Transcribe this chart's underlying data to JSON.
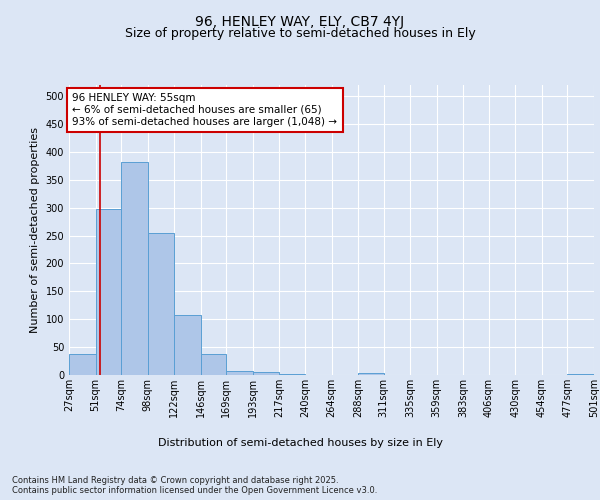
{
  "title": "96, HENLEY WAY, ELY, CB7 4YJ",
  "subtitle": "Size of property relative to semi-detached houses in Ely",
  "xlabel": "Distribution of semi-detached houses by size in Ely",
  "ylabel": "Number of semi-detached properties",
  "bins": [
    27,
    51,
    74,
    98,
    122,
    146,
    169,
    193,
    217,
    240,
    264,
    288,
    311,
    335,
    359,
    383,
    406,
    430,
    454,
    477,
    501
  ],
  "bin_labels": [
    "27sqm",
    "51sqm",
    "74sqm",
    "98sqm",
    "122sqm",
    "146sqm",
    "169sqm",
    "193sqm",
    "217sqm",
    "240sqm",
    "264sqm",
    "288sqm",
    "311sqm",
    "335sqm",
    "359sqm",
    "383sqm",
    "406sqm",
    "430sqm",
    "454sqm",
    "477sqm",
    "501sqm"
  ],
  "values": [
    37,
    298,
    382,
    255,
    108,
    37,
    8,
    5,
    2,
    0,
    0,
    3,
    0,
    0,
    0,
    0,
    0,
    0,
    0,
    2
  ],
  "bar_color": "#aec6e8",
  "bar_edge_color": "#5a9fd4",
  "property_line_x": 55,
  "property_line_color": "#cc0000",
  "annotation_text": "96 HENLEY WAY: 55sqm\n← 6% of semi-detached houses are smaller (65)\n93% of semi-detached houses are larger (1,048) →",
  "annotation_box_color": "#cc0000",
  "ylim": [
    0,
    520
  ],
  "yticks": [
    0,
    50,
    100,
    150,
    200,
    250,
    300,
    350,
    400,
    450,
    500
  ],
  "bg_color": "#dce6f5",
  "plot_bg_color": "#dce6f5",
  "footer": "Contains HM Land Registry data © Crown copyright and database right 2025.\nContains public sector information licensed under the Open Government Licence v3.0.",
  "title_fontsize": 10,
  "subtitle_fontsize": 9,
  "axis_label_fontsize": 8,
  "tick_fontsize": 7,
  "annotation_fontsize": 7.5,
  "footer_fontsize": 6
}
